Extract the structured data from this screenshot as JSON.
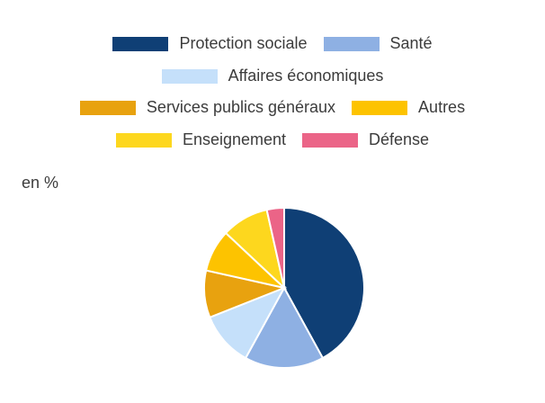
{
  "chart_data": {
    "type": "pie",
    "unit_label": "en %",
    "legend_placement": "top",
    "legend_rows": [
      [
        0,
        1
      ],
      [
        2
      ],
      [
        3,
        4
      ],
      [
        5,
        6
      ]
    ],
    "series": [
      {
        "name": "Protection sociale",
        "value": 42.0,
        "color": "#0f3f75"
      },
      {
        "name": "Santé",
        "value": 16.0,
        "color": "#8eb0e3"
      },
      {
        "name": "Affaires économiques",
        "value": 11.0,
        "color": "#c5e0fa"
      },
      {
        "name": "Services publics généraux",
        "value": 9.5,
        "color": "#e8a20f"
      },
      {
        "name": "Autres",
        "value": 8.5,
        "color": "#fdc300"
      },
      {
        "name": "Enseignement",
        "value": 9.5,
        "color": "#fdd71e"
      },
      {
        "name": "Défense",
        "value": 3.5,
        "color": "#eb6487"
      }
    ]
  }
}
